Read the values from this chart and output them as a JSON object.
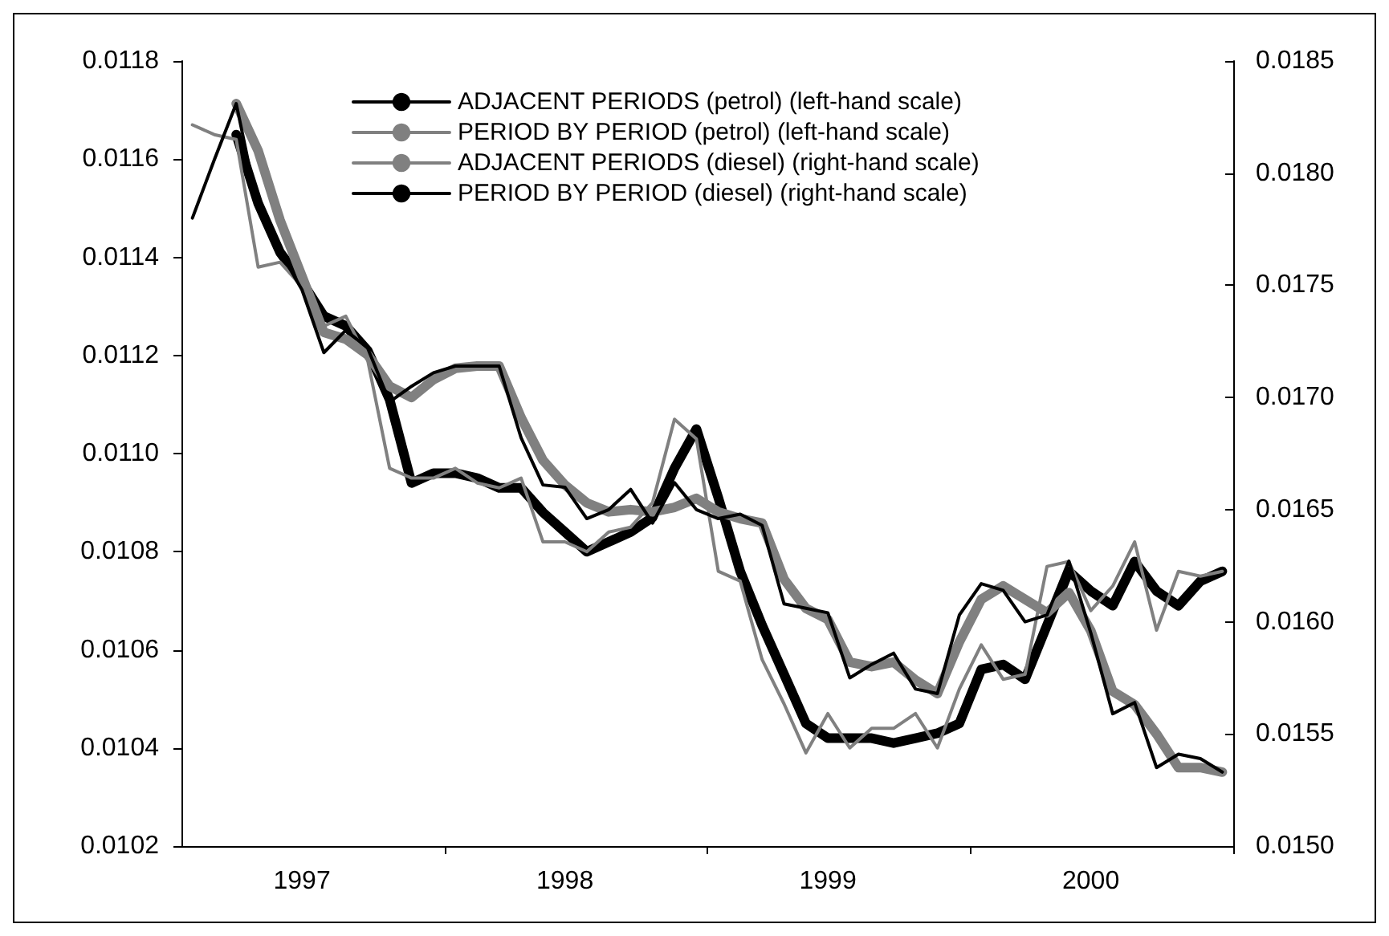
{
  "chart_data": {
    "type": "line",
    "categories": [
      null,
      null,
      null,
      null,
      null,
      "1997",
      null,
      null,
      null,
      null,
      null,
      null,
      null,
      null,
      null,
      null,
      null,
      "1998",
      null,
      null,
      null,
      null,
      null,
      null,
      null,
      null,
      null,
      null,
      null,
      "1999",
      null,
      null,
      null,
      null,
      null,
      null,
      null,
      null,
      null,
      null,
      null,
      "2000",
      null,
      null,
      null,
      null,
      null,
      null
    ],
    "series": [
      {
        "name": "ADJACENT PERIODS (petrol) (left-hand scale)",
        "color": "#000000",
        "values": [
          null,
          null,
          0.01165,
          0.01151,
          0.01141,
          0.01135,
          0.01128,
          0.01126,
          0.01121,
          0.01111,
          0.01094,
          0.01096,
          0.01096,
          0.01095,
          0.01093,
          0.01093,
          0.01088,
          0.01084,
          0.0108,
          0.01082,
          0.01084,
          0.01087,
          0.01097,
          0.01105,
          0.01091,
          0.01076,
          0.01065,
          0.01055,
          0.01045,
          0.01042,
          0.01042,
          0.01042,
          0.01041,
          0.01042,
          0.01043,
          0.01045,
          0.01056,
          0.01057,
          0.01054,
          0.01065,
          0.01076,
          0.01072,
          0.01069,
          0.01078,
          0.01072,
          0.01069,
          0.01074,
          0.01076
        ]
      },
      {
        "name": "PERIOD BY PERIOD (petrol) (left-hand scale)",
        "color": "#808080",
        "values": [
          0.01167,
          0.01165,
          0.01164,
          0.01138,
          0.01139,
          0.01134,
          0.01126,
          0.01128,
          0.01119,
          0.01097,
          0.01095,
          0.01095,
          0.01097,
          0.01094,
          0.01093,
          0.01095,
          0.01082,
          0.01082,
          0.0108,
          0.01084,
          0.01085,
          0.0109,
          0.01107,
          0.01103,
          0.01076,
          0.01074,
          0.01058,
          0.01049,
          0.01039,
          0.01047,
          0.0104,
          0.01044,
          0.01044,
          0.01047,
          0.0104,
          0.01052,
          0.01061,
          0.01054,
          0.01055,
          0.01077,
          0.01078,
          0.01068,
          0.01073,
          0.01082,
          0.01064,
          0.01076,
          0.01075,
          0.01076
        ]
      },
      {
        "name": "ADJACENT PERIODS (diesel) (right-hand scale)",
        "color": "#808080",
        "axis": "y2",
        "values": [
          null,
          null,
          0.01831,
          0.0181,
          0.01779,
          0.01754,
          0.01729,
          0.01726,
          0.01719,
          0.01705,
          0.017,
          0.01708,
          0.01713,
          0.01714,
          0.01714,
          0.01691,
          0.01672,
          0.01661,
          0.01653,
          0.01649,
          0.0165,
          0.01649,
          0.01651,
          0.01655,
          0.01649,
          0.01646,
          0.01644,
          0.01619,
          0.01606,
          0.01601,
          0.01582,
          0.0158,
          0.01582,
          0.01574,
          0.01568,
          0.01591,
          0.0161,
          0.01616,
          0.0161,
          0.01604,
          0.01613,
          0.01596,
          0.01569,
          0.01563,
          0.0155,
          0.01535,
          0.01535,
          0.01533
        ]
      },
      {
        "name": "PERIOD BY PERIOD (diesel) (right-hand scale)",
        "color": "#000000",
        "axis": "y2",
        "values": [
          0.0178,
          0.01806,
          0.01831,
          0.01784,
          0.01765,
          0.01748,
          0.0172,
          0.0173,
          0.01722,
          0.01698,
          0.01705,
          0.01711,
          0.01714,
          0.01714,
          0.01714,
          0.01682,
          0.01661,
          0.0166,
          0.01646,
          0.0165,
          0.01659,
          0.01644,
          0.01662,
          0.0165,
          0.01646,
          0.01648,
          0.01643,
          0.01608,
          0.01606,
          0.01604,
          0.01575,
          0.01581,
          0.01586,
          0.0157,
          0.01568,
          0.01603,
          0.01617,
          0.01614,
          0.016,
          0.01603,
          0.01627,
          0.01595,
          0.01559,
          0.01564,
          0.01535,
          0.01541,
          0.01539,
          0.01533
        ]
      }
    ],
    "ylim": [
      0.0102,
      0.0118
    ],
    "yticks": [
      0.0102,
      0.0104,
      0.0106,
      0.0108,
      {
        "value": 0.011,
        "label": "0.0110"
      },
      0.0112,
      0.0114,
      0.0116,
      0.0118
    ],
    "y2lim": [
      0.015,
      0.0185
    ],
    "y2ticks": [
      {
        "value": 0.015,
        "label": "0.0150"
      },
      0.0155,
      {
        "value": 0.016,
        "label": "0.0160"
      },
      0.0165,
      {
        "value": 0.017,
        "label": "0.0170"
      },
      0.0175,
      {
        "value": 0.018,
        "label": "0.0180"
      },
      0.0185
    ],
    "grid": false,
    "legend": "top",
    "marker": "none",
    "line_style": "solid"
  }
}
